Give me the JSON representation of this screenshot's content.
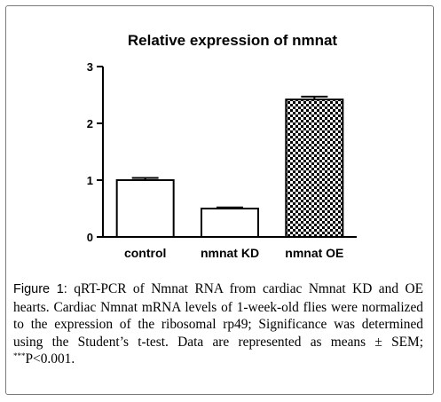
{
  "chart_data": {
    "type": "bar",
    "title": "Relative expression of nmnat",
    "xlabel": "",
    "ylabel": "",
    "categories": [
      "control",
      "nmnat KD",
      "nmnat OE"
    ],
    "values": [
      1.0,
      0.5,
      2.42
    ],
    "errors": [
      0.04,
      0.02,
      0.05
    ],
    "bar_fills": [
      "white",
      "white",
      "checkerboard"
    ],
    "ylim": [
      0,
      3
    ],
    "yticks": [
      "0",
      "1",
      "2",
      "3"
    ],
    "grid": false,
    "legend": "none"
  },
  "caption": {
    "label": "Figure 1:",
    "text_before_sup": " qRT-PCR of Nmnat RNA from cardiac Nmnat KD and OE hearts. Cardiac Nmnat mRNA levels of 1-week-old flies were normalized to the expression of the ribosomal rp49; Significance was determined using the Student’s t-test. Data are represented as means ± SEM; ",
    "sup": "***",
    "text_after_sup": "P<0.001."
  },
  "colors": {
    "bar_stroke": "#000000",
    "checker_dark": "#000000",
    "checker_light": "#ffffff",
    "frame_border": "#7a7a7a"
  }
}
